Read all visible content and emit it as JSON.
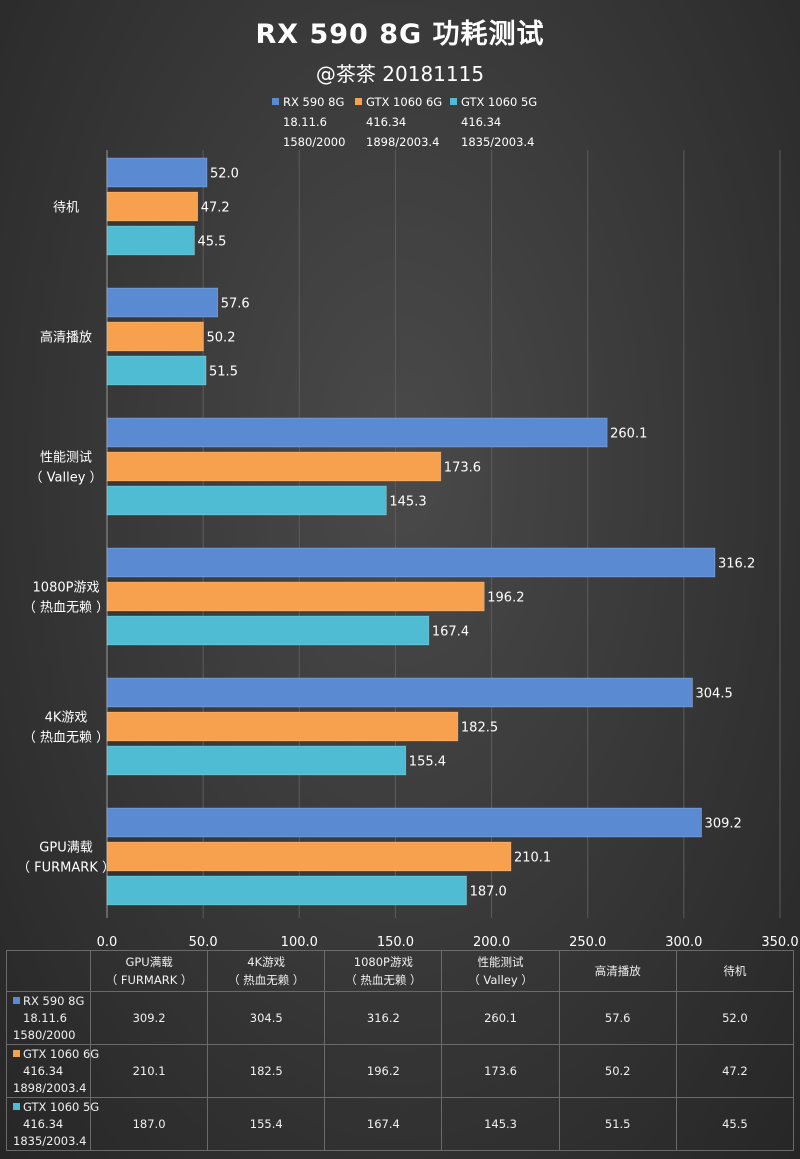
{
  "chart_data": {
    "type": "bar",
    "orientation": "horizontal",
    "title": "RX 590 8G 功耗测试",
    "subtitle": "@茶茶 20181115",
    "categories": [
      [
        "待机"
      ],
      [
        "高清播放"
      ],
      [
        "性能测试",
        "（ Valley ）"
      ],
      [
        "1080P游戏",
        "（ 热血无赖 ）"
      ],
      [
        "4K游戏",
        "（ 热血无赖 ）"
      ],
      [
        "GPU满载",
        "（ FURMARK ）"
      ]
    ],
    "series": [
      {
        "name": "RX 590 8G",
        "sub": [
          "18.11.6",
          "1580/2000"
        ],
        "color": "#5a8ad2",
        "values": [
          52.0,
          57.6,
          260.1,
          316.2,
          304.5,
          309.2
        ]
      },
      {
        "name": "GTX 1060 6G",
        "sub": [
          "416.34",
          "1898/2003.4"
        ],
        "color": "#f7a04e",
        "values": [
          47.2,
          50.2,
          173.6,
          196.2,
          182.5,
          210.1
        ]
      },
      {
        "name": "GTX 1060 5G",
        "sub": [
          "416.34",
          "1835/2003.4"
        ],
        "color": "#4fbcd4",
        "values": [
          45.5,
          51.5,
          145.3,
          167.4,
          155.4,
          187.0
        ]
      }
    ],
    "xlim": [
      0,
      350
    ],
    "xticks": [
      "0.0",
      "50.0",
      "100.0",
      "150.0",
      "200.0",
      "250.0",
      "300.0",
      "350.0"
    ],
    "grid": true,
    "legend": "top-center"
  },
  "table": {
    "headers": [
      [
        "GPU满载",
        "（ FURMARK ）"
      ],
      [
        "4K游戏",
        "（ 热血无赖 ）"
      ],
      [
        "1080P游戏",
        "（ 热血无赖 ）"
      ],
      [
        "性能测试",
        "（ Valley ）"
      ],
      [
        "高清播放"
      ],
      [
        "待机"
      ]
    ],
    "rows": [
      [
        "309.2",
        "304.5",
        "316.2",
        "260.1",
        "57.6",
        "52.0"
      ],
      [
        "210.1",
        "182.5",
        "196.2",
        "173.6",
        "50.2",
        "47.2"
      ],
      [
        "187.0",
        "155.4",
        "167.4",
        "145.3",
        "51.5",
        "45.5"
      ]
    ]
  }
}
